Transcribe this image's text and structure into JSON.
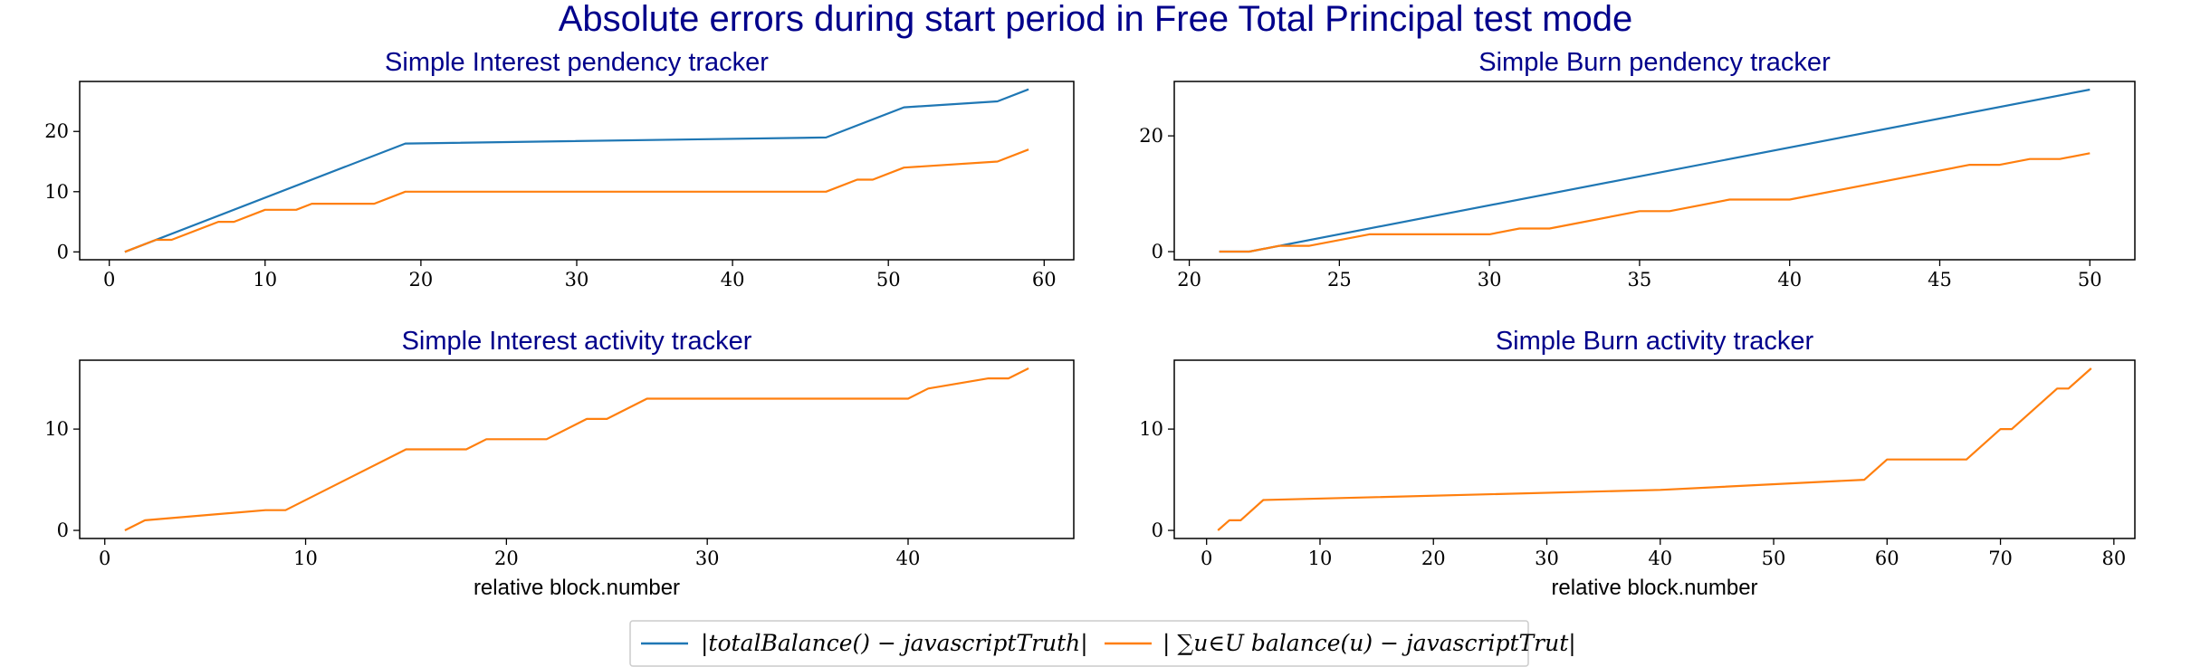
{
  "suptitle": "Absolute errors during start period in Free Total Principal test mode",
  "colors": {
    "series1": "#1f77b4",
    "series2": "#ff7f0e",
    "title": "#00008b"
  },
  "legend": {
    "placement": "bottom-center",
    "items": [
      {
        "label": "|totalBalance() − javascriptTruth|",
        "color": "#1f77b4"
      },
      {
        "label": "| ∑u∈U balance(u) − javascriptTrut|",
        "color": "#ff7f0e"
      }
    ]
  },
  "chart_data": [
    {
      "type": "line",
      "title": "Simple Interest pendency tracker",
      "xlabel": "",
      "xlim": [
        -1.9,
        61.9
      ],
      "ylim": [
        -1.3,
        28.3
      ],
      "xticks": [
        0,
        10,
        20,
        30,
        40,
        50,
        60
      ],
      "yticks": [
        0,
        10,
        20
      ],
      "series": [
        {
          "name": "|totalBalance() − javascriptTruth|",
          "color": "#1f77b4",
          "points": [
            [
              1,
              0
            ],
            [
              19,
              18
            ],
            [
              46,
              19
            ],
            [
              51,
              24
            ],
            [
              57,
              25
            ],
            [
              59,
              27
            ]
          ]
        },
        {
          "name": "| ∑u∈U balance(u) − javascriptTrut|",
          "color": "#ff7f0e",
          "points": [
            [
              1,
              0
            ],
            [
              3,
              2
            ],
            [
              4,
              2
            ],
            [
              7,
              5
            ],
            [
              8,
              5
            ],
            [
              10,
              7
            ],
            [
              12,
              7
            ],
            [
              13,
              8
            ],
            [
              17,
              8
            ],
            [
              19,
              10
            ],
            [
              46,
              10
            ],
            [
              48,
              12
            ],
            [
              49,
              12
            ],
            [
              51,
              14
            ],
            [
              57,
              15
            ],
            [
              59,
              17
            ]
          ]
        }
      ]
    },
    {
      "type": "line",
      "title": "Simple Burn pendency tracker",
      "xlabel": "",
      "xlim": [
        19.5,
        51.5
      ],
      "ylim": [
        -1.4,
        29.4
      ],
      "xticks": [
        20,
        25,
        30,
        35,
        40,
        45,
        50
      ],
      "yticks": [
        0,
        20
      ],
      "series": [
        {
          "name": "|totalBalance() − javascriptTruth|",
          "color": "#1f77b4",
          "points": [
            [
              21,
              0
            ],
            [
              22,
              0
            ],
            [
              50,
              28
            ]
          ]
        },
        {
          "name": "| ∑u∈U balance(u) − javascriptTrut|",
          "color": "#ff7f0e",
          "points": [
            [
              21,
              0
            ],
            [
              22,
              0
            ],
            [
              23,
              1
            ],
            [
              24,
              1
            ],
            [
              26,
              3
            ],
            [
              30,
              3
            ],
            [
              31,
              4
            ],
            [
              32,
              4
            ],
            [
              35,
              7
            ],
            [
              36,
              7
            ],
            [
              38,
              9
            ],
            [
              40,
              9
            ],
            [
              46,
              15
            ],
            [
              47,
              15
            ],
            [
              48,
              16
            ],
            [
              49,
              16
            ],
            [
              50,
              17
            ]
          ]
        }
      ]
    },
    {
      "type": "line",
      "title": "Simple Interest activity tracker",
      "xlabel": "relative block.number",
      "xlim": [
        -1.25,
        48.25
      ],
      "ylim": [
        -0.8,
        16.8
      ],
      "xticks": [
        0,
        10,
        20,
        30,
        40
      ],
      "yticks": [
        0,
        10
      ],
      "series": [
        {
          "name": "| ∑u∈U balance(u) − javascriptTrut|",
          "color": "#ff7f0e",
          "points": [
            [
              1,
              0
            ],
            [
              2,
              1
            ],
            [
              8,
              2
            ],
            [
              9,
              2
            ],
            [
              15,
              8
            ],
            [
              18,
              8
            ],
            [
              19,
              9
            ],
            [
              22,
              9
            ],
            [
              24,
              11
            ],
            [
              25,
              11
            ],
            [
              27,
              13
            ],
            [
              40,
              13
            ],
            [
              41,
              14
            ],
            [
              44,
              15
            ],
            [
              45,
              15
            ],
            [
              46,
              16
            ]
          ]
        }
      ]
    },
    {
      "type": "line",
      "title": "Simple Burn activity tracker",
      "xlabel": "relative block.number",
      "xlim": [
        -2.85,
        81.85
      ],
      "ylim": [
        -0.8,
        16.8
      ],
      "xticks": [
        0,
        10,
        20,
        30,
        40,
        50,
        60,
        70,
        80
      ],
      "yticks": [
        0,
        10
      ],
      "series": [
        {
          "name": "| ∑u∈U balance(u) − javascriptTrut|",
          "color": "#ff7f0e",
          "points": [
            [
              1,
              0
            ],
            [
              2,
              1
            ],
            [
              3,
              1
            ],
            [
              5,
              3
            ],
            [
              40,
              4
            ],
            [
              58,
              5
            ],
            [
              60,
              7
            ],
            [
              67,
              7
            ],
            [
              70,
              10
            ],
            [
              71,
              10
            ],
            [
              75,
              14
            ],
            [
              76,
              14
            ],
            [
              78,
              16
            ]
          ]
        }
      ]
    }
  ]
}
